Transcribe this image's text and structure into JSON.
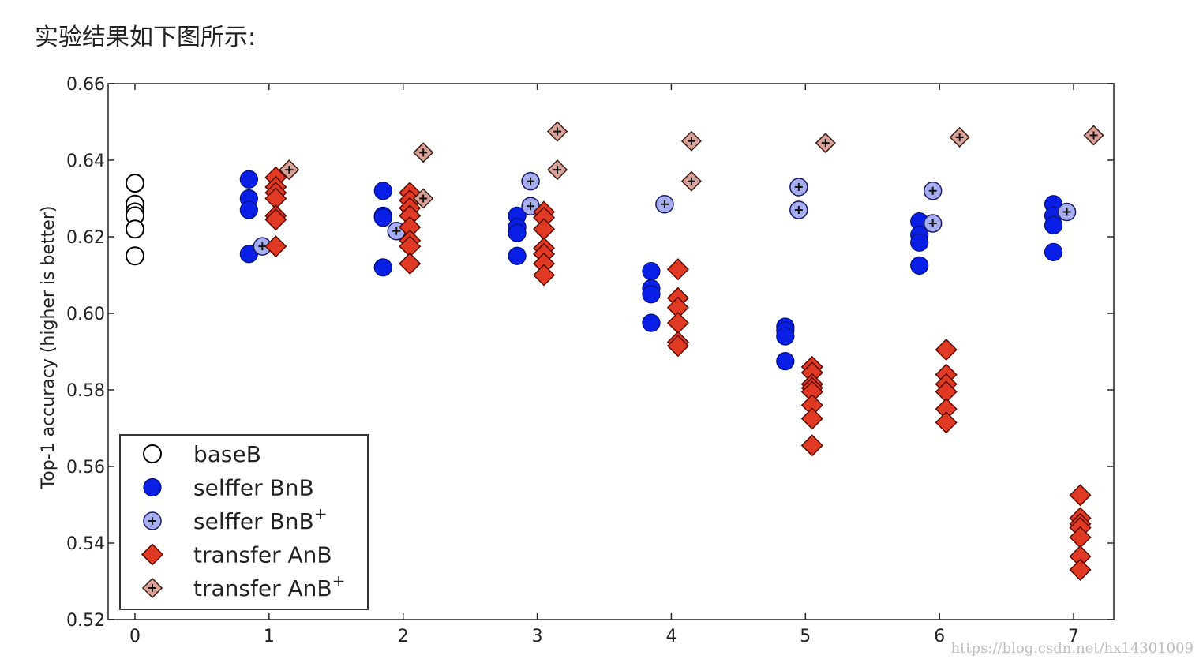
{
  "intro_text": "实验结果如下图所示:",
  "watermark": "https://blog.csdn.net/hx14301009",
  "chart_data": {
    "type": "scatter",
    "title": "",
    "xlabel": "",
    "ylabel": "Top-1 accuracy (higher is better)",
    "xlim": [
      -0.2,
      7.3
    ],
    "ylim": [
      0.52,
      0.66
    ],
    "xticks": [
      "0",
      "1",
      "2",
      "3",
      "4",
      "5",
      "6",
      "7"
    ],
    "yticks": [
      "0.52",
      "0.54",
      "0.56",
      "0.58",
      "0.60",
      "0.62",
      "0.64",
      "0.66"
    ],
    "grid": false,
    "legend_position": "lower-left",
    "series": [
      {
        "name": "baseB",
        "marker": "open-circle",
        "color": "#ffffff",
        "edge": "#000000",
        "points": [
          [
            0,
            0.634
          ],
          [
            0,
            0.6285
          ],
          [
            0,
            0.6265
          ],
          [
            0,
            0.6255
          ],
          [
            0,
            0.622
          ],
          [
            0,
            0.615
          ]
        ]
      },
      {
        "name": "selffer BnB",
        "marker": "circle",
        "color": "#0a1fe6",
        "edge": "#001080",
        "points": [
          [
            0.85,
            0.635
          ],
          [
            0.85,
            0.63
          ],
          [
            0.85,
            0.627
          ],
          [
            0.85,
            0.6155
          ],
          [
            1.85,
            0.632
          ],
          [
            1.85,
            0.6255
          ],
          [
            1.85,
            0.625
          ],
          [
            1.85,
            0.612
          ],
          [
            2.85,
            0.6255
          ],
          [
            2.85,
            0.6225
          ],
          [
            2.85,
            0.621
          ],
          [
            2.85,
            0.615
          ],
          [
            3.85,
            0.611
          ],
          [
            3.85,
            0.6065
          ],
          [
            3.85,
            0.605
          ],
          [
            3.85,
            0.5975
          ],
          [
            4.85,
            0.5965
          ],
          [
            4.85,
            0.5955
          ],
          [
            4.85,
            0.594
          ],
          [
            4.85,
            0.5875
          ],
          [
            5.85,
            0.624
          ],
          [
            5.85,
            0.6205
          ],
          [
            5.85,
            0.6185
          ],
          [
            5.85,
            0.6125
          ],
          [
            6.85,
            0.6285
          ],
          [
            6.85,
            0.6255
          ],
          [
            6.85,
            0.623
          ],
          [
            6.85,
            0.616
          ]
        ]
      },
      {
        "name": "selffer BnB",
        "superscript": "+",
        "marker": "circle-plus",
        "color": "#a6aef0",
        "edge": "#1a1a66",
        "points": [
          [
            0.95,
            0.6175
          ],
          [
            1.95,
            0.6215
          ],
          [
            2.95,
            0.6345
          ],
          [
            2.95,
            0.628
          ],
          [
            3.95,
            0.6285
          ],
          [
            4.95,
            0.633
          ],
          [
            4.95,
            0.627
          ],
          [
            5.95,
            0.632
          ],
          [
            5.95,
            0.6235
          ],
          [
            6.95,
            0.6265
          ]
        ]
      },
      {
        "name": "transfer AnB",
        "marker": "diamond",
        "color": "#e03a24",
        "edge": "#5a0a00",
        "points": [
          [
            1.05,
            0.6355
          ],
          [
            1.05,
            0.633
          ],
          [
            1.05,
            0.6315
          ],
          [
            1.05,
            0.63
          ],
          [
            1.05,
            0.6255
          ],
          [
            1.05,
            0.6245
          ],
          [
            1.05,
            0.6175
          ],
          [
            2.05,
            0.6315
          ],
          [
            2.05,
            0.6295
          ],
          [
            2.05,
            0.6275
          ],
          [
            2.05,
            0.6255
          ],
          [
            2.05,
            0.6225
          ],
          [
            2.05,
            0.619
          ],
          [
            2.05,
            0.6175
          ],
          [
            2.05,
            0.613
          ],
          [
            3.05,
            0.6265
          ],
          [
            3.05,
            0.625
          ],
          [
            3.05,
            0.622
          ],
          [
            3.05,
            0.617
          ],
          [
            3.05,
            0.6155
          ],
          [
            3.05,
            0.613
          ],
          [
            3.05,
            0.61
          ],
          [
            4.05,
            0.6115
          ],
          [
            4.05,
            0.604
          ],
          [
            4.05,
            0.6015
          ],
          [
            4.05,
            0.5975
          ],
          [
            4.05,
            0.5925
          ],
          [
            4.05,
            0.5915
          ],
          [
            5.05,
            0.586
          ],
          [
            5.05,
            0.5845
          ],
          [
            5.05,
            0.5815
          ],
          [
            5.05,
            0.5805
          ],
          [
            5.05,
            0.5795
          ],
          [
            5.05,
            0.576
          ],
          [
            5.05,
            0.5725
          ],
          [
            5.05,
            0.5655
          ],
          [
            6.05,
            0.5905
          ],
          [
            6.05,
            0.584
          ],
          [
            6.05,
            0.5815
          ],
          [
            6.05,
            0.5795
          ],
          [
            6.05,
            0.575
          ],
          [
            6.05,
            0.5715
          ],
          [
            7.05,
            0.5525
          ],
          [
            7.05,
            0.5465
          ],
          [
            7.05,
            0.545
          ],
          [
            7.05,
            0.544
          ],
          [
            7.05,
            0.5415
          ],
          [
            7.05,
            0.5365
          ],
          [
            7.05,
            0.533
          ]
        ]
      },
      {
        "name": "transfer AnB",
        "superscript": "+",
        "marker": "diamond-plus",
        "color": "#d9a39b",
        "edge": "#3a1a10",
        "points": [
          [
            1.15,
            0.6375
          ],
          [
            2.15,
            0.642
          ],
          [
            2.15,
            0.63
          ],
          [
            3.15,
            0.6475
          ],
          [
            3.15,
            0.6375
          ],
          [
            4.15,
            0.645
          ],
          [
            4.15,
            0.6345
          ],
          [
            5.15,
            0.6445
          ],
          [
            6.15,
            0.646
          ],
          [
            7.15,
            0.6465
          ]
        ]
      }
    ]
  }
}
